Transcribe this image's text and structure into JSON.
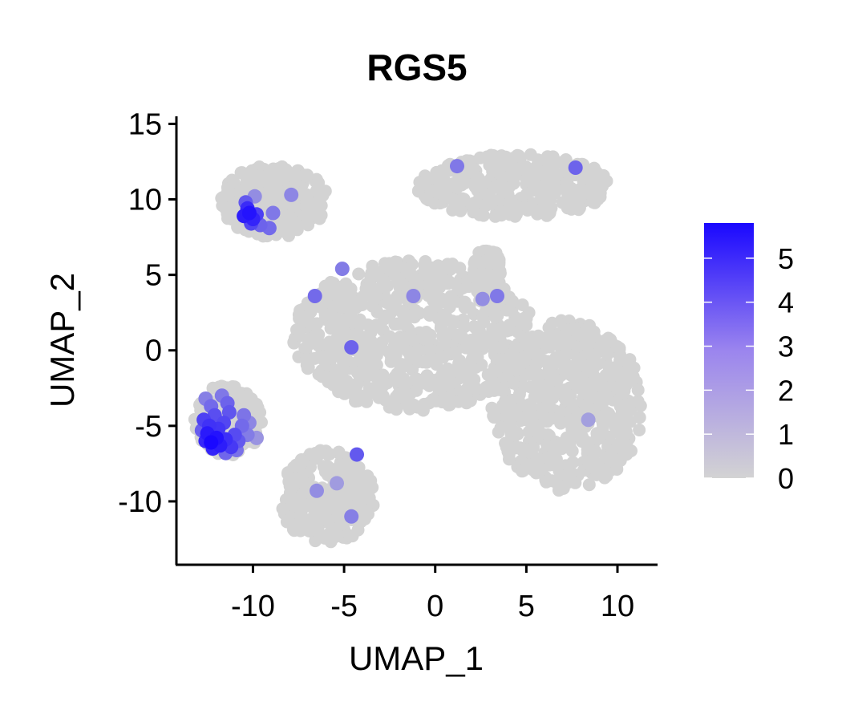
{
  "chart_data": {
    "type": "scatter",
    "title": "RGS5",
    "xlabel": "UMAP_1",
    "ylabel": "UMAP_2",
    "xlim": [
      -14.2,
      12.2
    ],
    "ylim": [
      -14.2,
      15.5
    ],
    "x_ticks": [
      -10,
      -5,
      0,
      5,
      10
    ],
    "y_ticks": [
      -10,
      -5,
      0,
      5,
      10,
      15
    ],
    "grid": false,
    "legend": {
      "type": "colorbar",
      "placement": "right",
      "min": 0,
      "max": 5.8,
      "ticks": [
        0,
        1,
        2,
        3,
        4,
        5
      ],
      "low_color": "#d3d3d3",
      "high_color": "#1a08ff"
    },
    "background_color": "#d3d3d3",
    "clusters": [
      {
        "name": "",
        "x_range": [
          -11.8,
          -5.9
        ],
        "y_range": [
          7.5,
          12.3
        ],
        "expression": "mixed; high on left edge"
      },
      {
        "name": "",
        "x_range": [
          -13.2,
          -9.5
        ],
        "y_range": [
          -7.0,
          -2.2
        ],
        "expression": "high"
      },
      {
        "name": "",
        "x_range": [
          -8.6,
          -3.3
        ],
        "y_range": [
          -12.8,
          -6.6
        ],
        "expression": "low"
      },
      {
        "name": "",
        "x_range": [
          -7.8,
          5.5
        ],
        "y_range": [
          -4.0,
          6.0
        ],
        "expression": "low"
      },
      {
        "name": "",
        "x_range": [
          -1.0,
          9.7
        ],
        "y_range": [
          8.8,
          13.0
        ],
        "expression": "low"
      },
      {
        "name": "",
        "x_range": [
          3.1,
          11.4
        ],
        "y_range": [
          -9.3,
          2.0
        ],
        "expression": "low"
      },
      {
        "name": "",
        "x_range": [
          2.1,
          3.6
        ],
        "y_range": [
          3.9,
          6.8
        ],
        "expression": "low"
      }
    ],
    "points": [
      {
        "x": -10.2,
        "y": 9.1,
        "v": 5.5
      },
      {
        "x": -10.5,
        "y": 8.9,
        "v": 5.2
      },
      {
        "x": -10.0,
        "y": 8.7,
        "v": 5.0
      },
      {
        "x": -10.3,
        "y": 9.4,
        "v": 4.8
      },
      {
        "x": -9.8,
        "y": 9.0,
        "v": 4.2
      },
      {
        "x": -10.1,
        "y": 8.4,
        "v": 4.0
      },
      {
        "x": -10.4,
        "y": 9.8,
        "v": 3.5
      },
      {
        "x": -9.6,
        "y": 8.3,
        "v": 3.2
      },
      {
        "x": -9.1,
        "y": 8.1,
        "v": 3.0
      },
      {
        "x": -8.9,
        "y": 9.1,
        "v": 2.6
      },
      {
        "x": -7.9,
        "y": 10.3,
        "v": 2.2
      },
      {
        "x": -9.9,
        "y": 10.2,
        "v": 2.0
      },
      {
        "x": -12.3,
        "y": -6.1,
        "v": 5.8
      },
      {
        "x": -12.0,
        "y": -5.8,
        "v": 5.5
      },
      {
        "x": -12.5,
        "y": -5.5,
        "v": 5.3
      },
      {
        "x": -11.8,
        "y": -6.3,
        "v": 5.2
      },
      {
        "x": -12.2,
        "y": -6.5,
        "v": 5.0
      },
      {
        "x": -12.6,
        "y": -6.0,
        "v": 4.9
      },
      {
        "x": -11.5,
        "y": -5.9,
        "v": 4.7
      },
      {
        "x": -12.4,
        "y": -5.0,
        "v": 4.6
      },
      {
        "x": -11.9,
        "y": -5.2,
        "v": 4.5
      },
      {
        "x": -11.2,
        "y": -6.4,
        "v": 4.4
      },
      {
        "x": -12.7,
        "y": -4.6,
        "v": 4.2
      },
      {
        "x": -11.6,
        "y": -4.8,
        "v": 4.0
      },
      {
        "x": -11.0,
        "y": -5.6,
        "v": 3.9
      },
      {
        "x": -12.1,
        "y": -4.3,
        "v": 3.8
      },
      {
        "x": -11.3,
        "y": -4.1,
        "v": 3.6
      },
      {
        "x": -10.8,
        "y": -6.0,
        "v": 3.5
      },
      {
        "x": -12.8,
        "y": -5.3,
        "v": 3.4
      },
      {
        "x": -11.4,
        "y": -3.5,
        "v": 3.2
      },
      {
        "x": -10.6,
        "y": -5.0,
        "v": 3.0
      },
      {
        "x": -12.3,
        "y": -3.7,
        "v": 3.0
      },
      {
        "x": -10.5,
        "y": -4.3,
        "v": 2.7
      },
      {
        "x": -11.7,
        "y": -3.0,
        "v": 2.6
      },
      {
        "x": -10.3,
        "y": -5.6,
        "v": 2.5
      },
      {
        "x": -12.6,
        "y": -3.2,
        "v": 2.4
      },
      {
        "x": -10.9,
        "y": -6.6,
        "v": 2.8
      },
      {
        "x": -11.5,
        "y": -6.8,
        "v": 3.1
      },
      {
        "x": -10.2,
        "y": -4.8,
        "v": 2.2
      },
      {
        "x": -9.8,
        "y": -5.8,
        "v": 1.8
      },
      {
        "x": -6.5,
        "y": -9.3,
        "v": 2.0
      },
      {
        "x": -5.4,
        "y": -8.8,
        "v": 1.6
      },
      {
        "x": -4.3,
        "y": -6.9,
        "v": 3.5
      },
      {
        "x": -4.6,
        "y": -11.0,
        "v": 2.4
      },
      {
        "x": -5.1,
        "y": 5.4,
        "v": 2.5
      },
      {
        "x": -6.6,
        "y": 3.6,
        "v": 3.0
      },
      {
        "x": -4.6,
        "y": 0.2,
        "v": 3.2
      },
      {
        "x": -1.2,
        "y": 3.6,
        "v": 2.2
      },
      {
        "x": 2.6,
        "y": 3.4,
        "v": 2.0
      },
      {
        "x": 3.4,
        "y": 3.6,
        "v": 2.6
      },
      {
        "x": 1.2,
        "y": 12.2,
        "v": 2.6
      },
      {
        "x": 7.7,
        "y": 12.1,
        "v": 3.2
      },
      {
        "x": 8.4,
        "y": -4.6,
        "v": 1.5
      }
    ]
  }
}
